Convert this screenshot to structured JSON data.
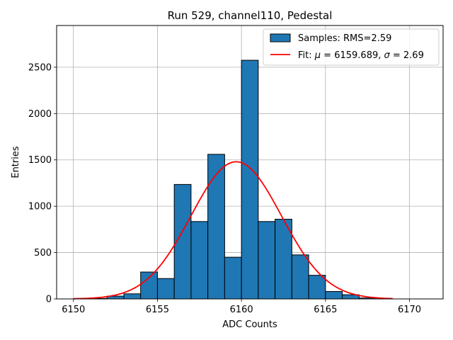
{
  "chart_data": {
    "type": "bar",
    "title": "Run 529, channel110, Pedestal",
    "xlabel": "ADC Counts",
    "ylabel": "Entries",
    "xlim": [
      6149,
      6172
    ],
    "ylim": [
      0,
      2950
    ],
    "xticks": [
      6150,
      6155,
      6160,
      6165,
      6170
    ],
    "yticks": [
      0,
      500,
      1000,
      1500,
      2000,
      2500
    ],
    "grid": true,
    "legend_position": "top-right",
    "bar_color": "#1f77b4",
    "fit_color": "#ff0000",
    "histogram": {
      "name": "Samples: RMS=2.59",
      "bin_edges": [
        6151,
        6152,
        6153,
        6154,
        6155,
        6156,
        6157,
        6158,
        6159,
        6160,
        6161,
        6162,
        6163,
        6164,
        6165,
        6166,
        6167,
        6168
      ],
      "values": [
        5,
        30,
        55,
        290,
        220,
        1235,
        835,
        1560,
        450,
        2575,
        835,
        860,
        475,
        255,
        80,
        45,
        10
      ]
    },
    "fit": {
      "name": "Fit: μ = 6159.689, σ = 2.69",
      "legend_prefix": "Fit: ",
      "mu_symbol": "μ",
      "mu_text": " = 6159.689, ",
      "sigma_symbol": "σ",
      "sigma_text": " = 2.69",
      "mu": 6159.689,
      "sigma": 2.69,
      "amplitude": 1480,
      "x_range": [
        6150,
        6169
      ]
    }
  }
}
